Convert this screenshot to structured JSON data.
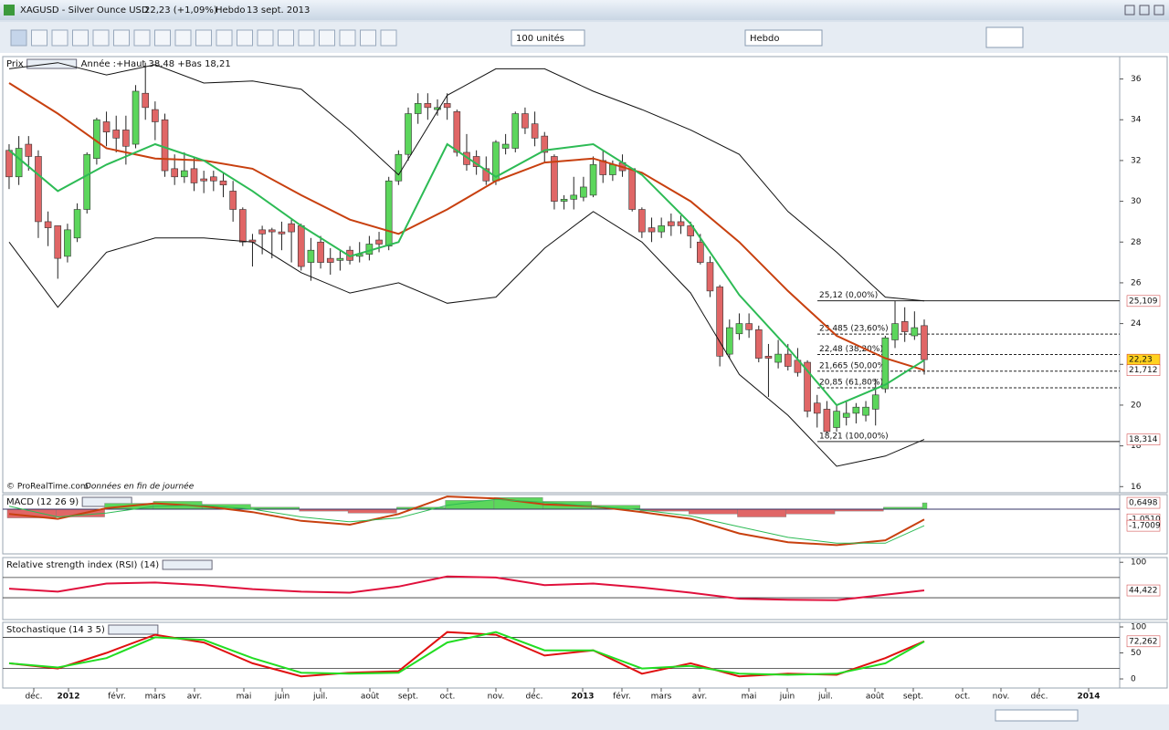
{
  "window": {
    "symbol": "XAGUSD - Silver Ounce USD",
    "quote": "22,23 (+1,09%)",
    "period": "Hebdo",
    "date": "13 sept. 2013"
  },
  "toolbar": {
    "units": "100 unités",
    "period": "Hebdo"
  },
  "footer": {
    "source": "© ProRealTime.com",
    "note": "Données en fin de journée"
  },
  "x_axis": {
    "labels": [
      "déc.",
      "2012",
      "févr.",
      "mars",
      "avr.",
      "mai",
      "juin",
      "juil.",
      "août",
      "sept.",
      "oct.",
      "nov.",
      "déc.",
      "2013",
      "févr.",
      "mars",
      "avr.",
      "mai",
      "juin",
      "juil.",
      "août",
      "sept.",
      "oct.",
      "nov.",
      "déc.",
      "2014"
    ]
  },
  "chart_data": [
    {
      "type": "candlestick",
      "title": "Prix",
      "subtitle": "Année :+Haut 38,48 +Bas 18,21",
      "ylim": [
        15.7,
        37.1
      ],
      "yticks": [
        16,
        18,
        20,
        22,
        24,
        26,
        28,
        30,
        32,
        34,
        36
      ],
      "ohlc": [
        [
          32.5,
          32.8,
          30.6,
          31.2
        ],
        [
          31.2,
          33.2,
          30.8,
          32.6
        ],
        [
          32.8,
          33.2,
          31.5,
          32.2
        ],
        [
          32.2,
          32.5,
          28.2,
          29
        ],
        [
          29,
          29.5,
          27.8,
          28.7
        ],
        [
          28.8,
          28.8,
          26.2,
          27.2
        ],
        [
          27.3,
          28.9,
          27,
          28.6
        ],
        [
          28.2,
          29.9,
          28,
          29.6
        ],
        [
          29.6,
          32.4,
          29.4,
          32.3
        ],
        [
          32.1,
          34.1,
          31.8,
          34
        ],
        [
          33.9,
          34.4,
          32.7,
          33.4
        ],
        [
          33.5,
          34.2,
          32.4,
          33.1
        ],
        [
          33.5,
          34.2,
          31.8,
          32.7
        ],
        [
          32.8,
          35.7,
          32.6,
          35.4
        ],
        [
          35.3,
          36.8,
          34,
          34.6
        ],
        [
          34.5,
          34.9,
          33,
          33.9
        ],
        [
          34,
          34.3,
          31.2,
          31.5
        ],
        [
          31.6,
          32.3,
          30.8,
          31.2
        ],
        [
          31.2,
          32.4,
          30.9,
          31.5
        ],
        [
          31.6,
          32.2,
          30.5,
          30.9
        ],
        [
          31.1,
          31.5,
          30.4,
          31
        ],
        [
          31.2,
          31.5,
          30.5,
          31
        ],
        [
          31,
          31.4,
          30.2,
          30.8
        ],
        [
          30.5,
          31,
          29,
          29.6
        ],
        [
          29.6,
          29.7,
          27.8,
          28
        ],
        [
          28.1,
          28.4,
          26.8,
          28
        ],
        [
          28.6,
          28.8,
          27.4,
          28.4
        ],
        [
          28.6,
          28.7,
          27.2,
          28.5
        ],
        [
          28.5,
          29,
          27.6,
          28.4
        ],
        [
          28.9,
          29.1,
          27,
          28.5
        ],
        [
          28.8,
          28.9,
          26.6,
          26.8
        ],
        [
          27,
          28.2,
          26.1,
          27.6
        ],
        [
          28,
          28.3,
          26.7,
          27
        ],
        [
          27.2,
          27.7,
          26.4,
          27
        ],
        [
          27.1,
          27.6,
          26.6,
          27.2
        ],
        [
          27.6,
          27.8,
          26.9,
          27.1
        ],
        [
          27.3,
          28,
          27,
          27.4
        ],
        [
          27.4,
          28.3,
          27.1,
          27.9
        ],
        [
          28.1,
          28.5,
          27.5,
          27.9
        ],
        [
          27.8,
          31.2,
          27.6,
          31
        ],
        [
          31,
          32.5,
          30.8,
          32.3
        ],
        [
          32.3,
          34.6,
          32,
          34.3
        ],
        [
          34.3,
          35.3,
          33.8,
          34.8
        ],
        [
          34.8,
          35.3,
          34,
          34.6
        ],
        [
          34.5,
          35,
          34.2,
          34.6
        ],
        [
          34.8,
          35.3,
          34,
          34.6
        ],
        [
          34.4,
          34.5,
          32.2,
          32.4
        ],
        [
          32.4,
          33.3,
          31.5,
          31.8
        ],
        [
          32.2,
          32.5,
          31.3,
          31.7
        ],
        [
          31.6,
          32.2,
          30.8,
          31
        ],
        [
          31,
          33,
          30.8,
          32.9
        ],
        [
          32.6,
          33.3,
          32.3,
          32.8
        ],
        [
          32.6,
          34.4,
          32.4,
          34.3
        ],
        [
          34.3,
          34.6,
          33.3,
          33.6
        ],
        [
          33.8,
          34.4,
          32.7,
          33.1
        ],
        [
          33.2,
          33.4,
          31.9,
          32.4
        ],
        [
          32.2,
          32.3,
          29.6,
          30
        ],
        [
          30,
          30.3,
          29.6,
          30.1
        ],
        [
          30.1,
          31.2,
          29.6,
          30.3
        ],
        [
          30.2,
          31.2,
          30,
          30.7
        ],
        [
          30.3,
          32.2,
          30.2,
          31.8
        ],
        [
          32,
          32.5,
          30.9,
          31.3
        ],
        [
          31.3,
          32,
          31,
          31.8
        ],
        [
          31.9,
          32.3,
          31.2,
          31.5
        ],
        [
          31.6,
          31.6,
          29.5,
          29.6
        ],
        [
          29.6,
          29.7,
          28.2,
          28.5
        ],
        [
          28.7,
          29.2,
          28,
          28.5
        ],
        [
          28.5,
          29.2,
          28.2,
          28.8
        ],
        [
          29,
          29.4,
          28.3,
          28.8
        ],
        [
          29,
          29.3,
          28.4,
          28.8
        ],
        [
          28.8,
          29,
          27.7,
          28.3
        ],
        [
          28,
          28.4,
          26.9,
          27
        ],
        [
          27,
          27.3,
          25.3,
          25.6
        ],
        [
          25.8,
          25.9,
          21.9,
          22.4
        ],
        [
          22.5,
          24.2,
          22.3,
          23.8
        ],
        [
          23.5,
          24.5,
          23.2,
          24
        ],
        [
          24,
          24.5,
          23.3,
          23.7
        ],
        [
          23.7,
          23.9,
          22.1,
          22.3
        ],
        [
          22.4,
          23,
          20.4,
          22.3
        ],
        [
          22.1,
          23.2,
          21.8,
          22.5
        ],
        [
          22.5,
          23,
          21.7,
          21.9
        ],
        [
          22.2,
          22.8,
          21.4,
          21.6
        ],
        [
          22.1,
          22.2,
          19.4,
          19.7
        ],
        [
          20.1,
          20.5,
          18.9,
          19.6
        ],
        [
          19.8,
          20.2,
          18.6,
          18.7
        ],
        [
          18.9,
          20,
          18.7,
          19.7
        ],
        [
          19.4,
          20.2,
          19,
          19.6
        ],
        [
          19.6,
          20.1,
          19.1,
          19.9
        ],
        [
          19.5,
          20.2,
          19.2,
          19.9
        ],
        [
          19.8,
          21.3,
          19,
          20.5
        ],
        [
          20.8,
          23.4,
          20.6,
          23.3
        ],
        [
          23.2,
          25.1,
          22.8,
          24
        ],
        [
          24.1,
          24.8,
          23.1,
          23.6
        ],
        [
          23.4,
          24.6,
          23.2,
          23.8
        ],
        [
          23.9,
          24.2,
          21.5,
          22.23
        ]
      ],
      "up_color": "#5cd65c",
      "down_color": "#e06666",
      "line_x": [
        0,
        5,
        10,
        15,
        20,
        25,
        30,
        35,
        40,
        45,
        50,
        55,
        60,
        65,
        70,
        75,
        80,
        85,
        90,
        94
      ],
      "lines": [
        {
          "color": "#c8400f",
          "width": 2,
          "values": [
            35.8,
            34.3,
            32.6,
            32.1,
            32,
            31.6,
            30.3,
            29.1,
            28.4,
            29.6,
            31,
            31.9,
            32.1,
            31.4,
            30,
            28,
            25.6,
            23.4,
            22.3,
            21.712
          ]
        },
        {
          "color": "#2dbb55",
          "width": 2,
          "values": [
            32.5,
            30.5,
            31.8,
            32.8,
            32,
            30.5,
            28.8,
            27.3,
            28,
            32.8,
            31.2,
            32.5,
            32.8,
            31.3,
            28.9,
            25.4,
            22.8,
            20,
            21,
            22.2
          ]
        },
        {
          "color": "#111111",
          "width": 1,
          "values": [
            36.5,
            36.8,
            36.2,
            36.7,
            35.8,
            35.9,
            35.5,
            33.5,
            31.3,
            35.2,
            36.5,
            36.5,
            35.4,
            34.5,
            33.5,
            32.3,
            29.5,
            27.5,
            25.3,
            25.109
          ]
        },
        {
          "color": "#111111",
          "width": 1,
          "values": [
            28,
            24.8,
            27.5,
            28.2,
            28.2,
            28,
            26.5,
            25.5,
            26,
            25,
            25.3,
            27.7,
            29.5,
            28,
            25.5,
            21.5,
            19.5,
            17,
            17.5,
            18.314
          ]
        }
      ],
      "levels": [
        {
          "value": 25.12,
          "label": "25,12 (0,00%)"
        },
        {
          "value": 23.485,
          "label": "23,485 (23,60%)"
        },
        {
          "value": 22.48,
          "label": "22,48 (38,20%)"
        },
        {
          "value": 21.665,
          "label": "21,665 (50,00%)"
        },
        {
          "value": 20.85,
          "label": "20,85 (61,80%)"
        },
        {
          "value": 18.21,
          "label": "18,21 (100,00%)"
        }
      ],
      "tags": [
        {
          "value": 25.109,
          "label": "25,109",
          "color": "#ffffff"
        },
        {
          "value": 22.23,
          "label": "22,23",
          "color": "#ffd21f"
        },
        {
          "value": 21.712,
          "label": "21,712",
          "color": "#ffffff"
        },
        {
          "value": 18.314,
          "label": "18,314",
          "color": "#ffffff"
        }
      ]
    },
    {
      "type": "macd",
      "title": "MACD (12 26 9)",
      "ylim": [
        -4.6,
        1.5
      ],
      "x": [
        0,
        5,
        10,
        15,
        20,
        25,
        30,
        35,
        40,
        45,
        50,
        55,
        60,
        65,
        70,
        75,
        80,
        85,
        90,
        94
      ],
      "histogram": [
        -0.9,
        -0.8,
        0.6,
        0.8,
        0.5,
        0.2,
        -0.2,
        -0.4,
        0.2,
        0.9,
        1.2,
        0.8,
        0.4,
        -0.2,
        -0.5,
        -0.8,
        -0.5,
        -0.2,
        0.2,
        0.6498
      ],
      "lines": [
        {
          "color": "#c8400f",
          "width": 2,
          "values": [
            -0.5,
            -1,
            0.1,
            0.6,
            0.3,
            -0.3,
            -1.2,
            -1.6,
            -0.5,
            1.3,
            1.1,
            0.5,
            0.3,
            -0.3,
            -1,
            -2.5,
            -3.4,
            -3.7,
            -3.2,
            -1.051
          ]
        },
        {
          "color": "#2dbb55",
          "width": 1,
          "values": [
            0.3,
            -0.8,
            -0.4,
            0.3,
            0.4,
            0,
            -0.8,
            -1.3,
            -0.9,
            0.4,
            1,
            0.7,
            0.3,
            -0.1,
            -0.7,
            -1.8,
            -2.9,
            -3.5,
            -3.5,
            -1.7009
          ]
        }
      ],
      "tags": [
        {
          "value": 0.6498,
          "label": "0,6498",
          "color": "#ffffff"
        },
        {
          "value": -1.051,
          "label": "-1,0510",
          "color": "#ffffff"
        },
        {
          "value": -1.7009,
          "label": "-1,7009",
          "color": "#ffffff"
        }
      ]
    },
    {
      "type": "oscillator",
      "title": "Relative strength index (RSI) (14)",
      "ylim": [
        -13.2,
        109.4
      ],
      "yticks": [
        100
      ],
      "levels": [
        70,
        30
      ],
      "x": [
        0,
        5,
        10,
        15,
        20,
        25,
        30,
        35,
        40,
        45,
        50,
        55,
        60,
        65,
        70,
        75,
        80,
        85,
        90,
        94
      ],
      "lines": [
        {
          "color": "#e0103c",
          "width": 2,
          "values": [
            48,
            42,
            58,
            60,
            55,
            47,
            42,
            40,
            52,
            72,
            70,
            55,
            58,
            50,
            40,
            28,
            26,
            25,
            36,
            44.422
          ]
        }
      ],
      "tags": [
        {
          "value": 44.422,
          "label": "44,422",
          "color": "#ffffff"
        }
      ]
    },
    {
      "type": "oscillator",
      "title": "Stochastique (14 3 5)",
      "ylim": [
        -17.5,
        108.8
      ],
      "yticks": [
        0,
        50,
        100
      ],
      "levels": [
        80,
        20
      ],
      "x": [
        0,
        5,
        10,
        15,
        20,
        25,
        30,
        35,
        40,
        45,
        50,
        55,
        60,
        65,
        70,
        75,
        80,
        85,
        90,
        94
      ],
      "lines": [
        {
          "color": "#e01010",
          "width": 2,
          "values": [
            30,
            20,
            50,
            85,
            70,
            30,
            5,
            12,
            15,
            90,
            85,
            45,
            55,
            10,
            30,
            5,
            10,
            8,
            40,
            72.262
          ]
        },
        {
          "color": "#22dd22",
          "width": 2,
          "values": [
            30,
            22,
            40,
            80,
            75,
            40,
            12,
            10,
            12,
            70,
            90,
            55,
            55,
            20,
            25,
            10,
            8,
            10,
            30,
            72
          ]
        }
      ],
      "tags": [
        {
          "value": 72.262,
          "label": "72,262",
          "color": "#ffffff"
        }
      ]
    }
  ]
}
